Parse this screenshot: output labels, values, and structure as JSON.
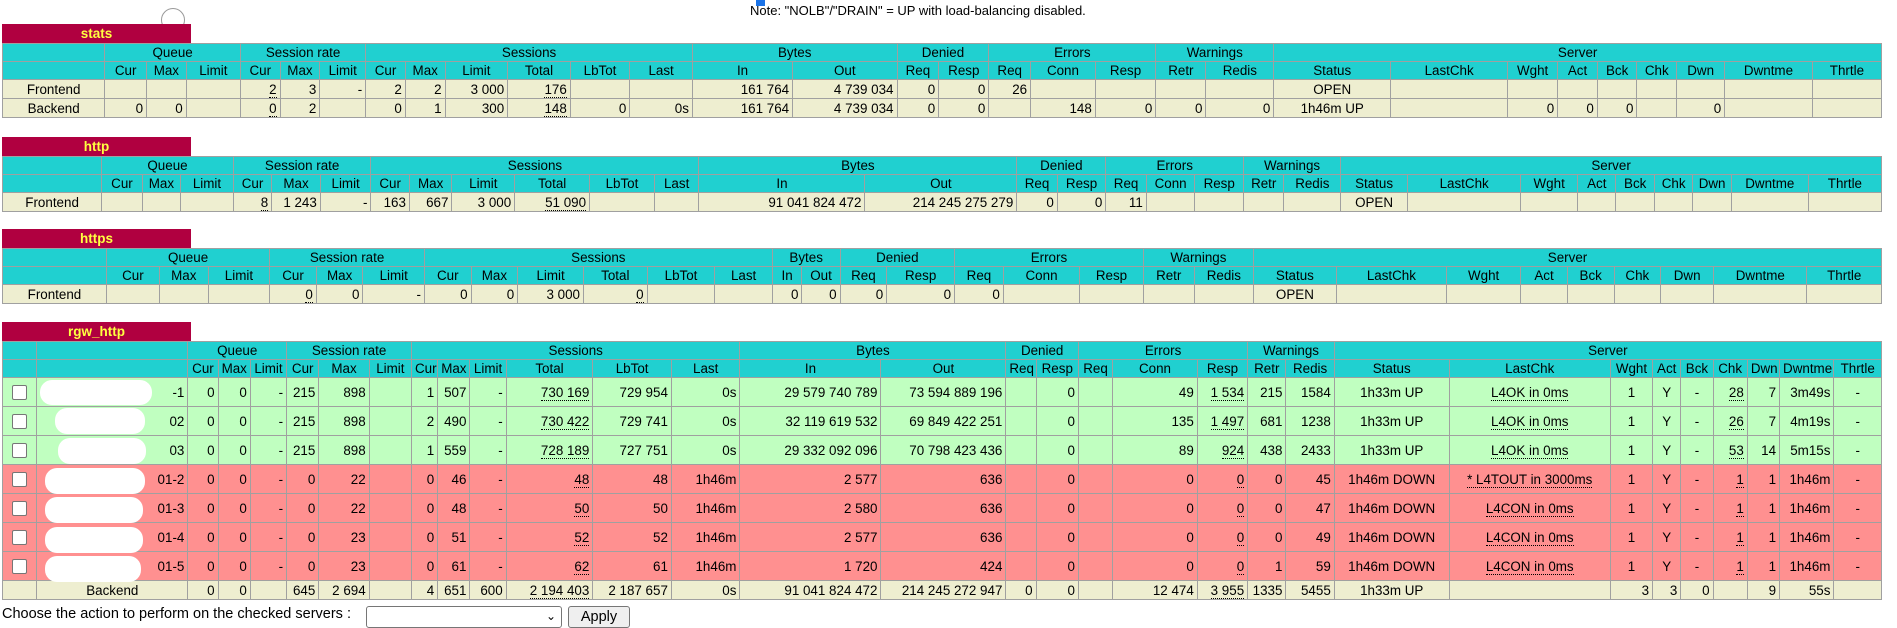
{
  "note": "Note: \"NOLB\"/\"DRAIN\" = UP with load-balancing disabled.",
  "headers": {
    "groups": [
      "Queue",
      "Session rate",
      "Sessions",
      "Bytes",
      "Denied",
      "Errors",
      "Warnings",
      "Server"
    ],
    "cols_frontend": [
      "Cur",
      "Max",
      "Limit",
      "Cur",
      "Max",
      "Limit",
      "Cur",
      "Max",
      "Limit",
      "Total",
      "LbTot",
      "Last",
      "In",
      "Out",
      "Req",
      "Resp",
      "Req",
      "Conn",
      "Resp",
      "Retr",
      "Redis",
      "Status",
      "LastChk",
      "Wght",
      "Act",
      "Bck",
      "Chk",
      "Dwn",
      "Dwntme",
      "Thrtle"
    ]
  },
  "stats": {
    "name": "stats",
    "frontend": [
      "Frontend",
      "",
      "",
      "",
      "2",
      "3",
      "-",
      "2",
      "2",
      "3 000",
      "176",
      "",
      "",
      "161 764",
      "4 739 034",
      "0",
      "0",
      "26",
      "",
      "",
      "",
      "",
      "OPEN",
      "",
      "",
      "",
      "",
      "",
      "",
      "",
      ""
    ],
    "backend": [
      "Backend",
      "0",
      "0",
      "",
      "0",
      "2",
      "",
      "0",
      "1",
      "300",
      "148",
      "0",
      "0s",
      "161 764",
      "4 739 034",
      "0",
      "0",
      "",
      "148",
      "0",
      "0",
      "0",
      "1h46m UP",
      "",
      "0",
      "0",
      "0",
      "",
      "0",
      "",
      ""
    ]
  },
  "http": {
    "name": "http",
    "frontend": [
      "Frontend",
      "",
      "",
      "",
      "8",
      "1 243",
      "-",
      "163",
      "667",
      "3 000",
      "51 090",
      "",
      "",
      "91 041 824 472",
      "214 245 275 279",
      "0",
      "0",
      "11",
      "",
      "",
      "",
      "",
      "OPEN",
      "",
      "",
      "",
      "",
      "",
      "",
      "",
      ""
    ]
  },
  "https": {
    "name": "https",
    "frontend": [
      "Frontend",
      "",
      "",
      "",
      "0",
      "0",
      "-",
      "0",
      "0",
      "3 000",
      "0",
      "",
      "",
      "0",
      "0",
      "0",
      "0",
      "0",
      "",
      "",
      "",
      "",
      "OPEN",
      "",
      "",
      "",
      "",
      "",
      "",
      "",
      ""
    ]
  },
  "rgw": {
    "name": "rgw_http",
    "servers": [
      {
        "name": "-1",
        "state": "up",
        "v": [
          "0",
          "0",
          "-",
          "215",
          "898",
          "",
          "1",
          "507",
          "-",
          "730 169",
          "729 954",
          "0s",
          "29 579 740 789",
          "73 594 889 196",
          "",
          "0",
          "",
          "49",
          "1 534",
          "215",
          "1584",
          "1h33m UP",
          "L4OK in 0ms",
          "1",
          "Y",
          "-",
          "28",
          "7",
          "3m49s",
          "-"
        ]
      },
      {
        "name": "02",
        "state": "up",
        "v": [
          "0",
          "0",
          "-",
          "215",
          "898",
          "",
          "2",
          "490",
          "-",
          "730 422",
          "729 741",
          "0s",
          "32 119 619 532",
          "69 849 422 251",
          "",
          "0",
          "",
          "135",
          "1 497",
          "681",
          "1238",
          "1h33m UP",
          "L4OK in 0ms",
          "1",
          "Y",
          "-",
          "26",
          "7",
          "4m19s",
          "-"
        ]
      },
      {
        "name": "03",
        "state": "up",
        "v": [
          "0",
          "0",
          "-",
          "215",
          "898",
          "",
          "1",
          "559",
          "-",
          "728 189",
          "727 751",
          "0s",
          "29 332 092 096",
          "70 798 423 436",
          "",
          "0",
          "",
          "89",
          "924",
          "438",
          "2433",
          "1h33m UP",
          "L4OK in 0ms",
          "1",
          "Y",
          "-",
          "53",
          "14",
          "5m15s",
          "-"
        ]
      },
      {
        "name": "01-2",
        "state": "down",
        "v": [
          "0",
          "0",
          "-",
          "0",
          "22",
          "",
          "0",
          "46",
          "-",
          "48",
          "48",
          "1h46m",
          "2 577",
          "636",
          "",
          "0",
          "",
          "0",
          "0",
          "0",
          "45",
          "1h46m DOWN",
          "* L4TOUT in 3000ms",
          "1",
          "Y",
          "-",
          "1",
          "1",
          "1h46m",
          "-"
        ]
      },
      {
        "name": "01-3",
        "state": "down",
        "v": [
          "0",
          "0",
          "-",
          "0",
          "22",
          "",
          "0",
          "48",
          "-",
          "50",
          "50",
          "1h46m",
          "2 580",
          "636",
          "",
          "0",
          "",
          "0",
          "0",
          "0",
          "47",
          "1h46m DOWN",
          "L4CON in 0ms",
          "1",
          "Y",
          "-",
          "1",
          "1",
          "1h46m",
          "-"
        ]
      },
      {
        "name": "01-4",
        "state": "down",
        "v": [
          "0",
          "0",
          "-",
          "0",
          "23",
          "",
          "0",
          "51",
          "-",
          "52",
          "52",
          "1h46m",
          "2 577",
          "636",
          "",
          "0",
          "",
          "0",
          "0",
          "0",
          "49",
          "1h46m DOWN",
          "L4CON in 0ms",
          "1",
          "Y",
          "-",
          "1",
          "1",
          "1h46m",
          "-"
        ]
      },
      {
        "name": "01-5",
        "state": "down",
        "v": [
          "0",
          "0",
          "-",
          "0",
          "23",
          "",
          "0",
          "61",
          "-",
          "62",
          "61",
          "1h46m",
          "1 720",
          "424",
          "",
          "0",
          "",
          "0",
          "0",
          "1",
          "59",
          "1h46m DOWN",
          "L4CON in 0ms",
          "1",
          "Y",
          "-",
          "1",
          "1",
          "1h46m",
          "-"
        ]
      }
    ],
    "backend": [
      "Backend",
      "0",
      "0",
      "",
      "645",
      "2 694",
      "",
      "4",
      "651",
      "600",
      "2 194 403",
      "2 187 657",
      "0s",
      "91 041 824 472",
      "214 245 272 947",
      "0",
      "0",
      "",
      "12 474",
      "3 955",
      "1335",
      "5455",
      "1h33m UP",
      "",
      "3",
      "3",
      "0",
      "",
      "9",
      "55s",
      ""
    ]
  },
  "action": {
    "label": "Choose the action to perform on the checked servers :",
    "select_value": "",
    "apply": "Apply"
  },
  "colors": {
    "header": "#20d0d0",
    "title_bg": "#b00040",
    "title_fg": "#ffff40",
    "up": "#c0ffc0",
    "down": "#ff9090",
    "neutral": "#eeeed0"
  }
}
